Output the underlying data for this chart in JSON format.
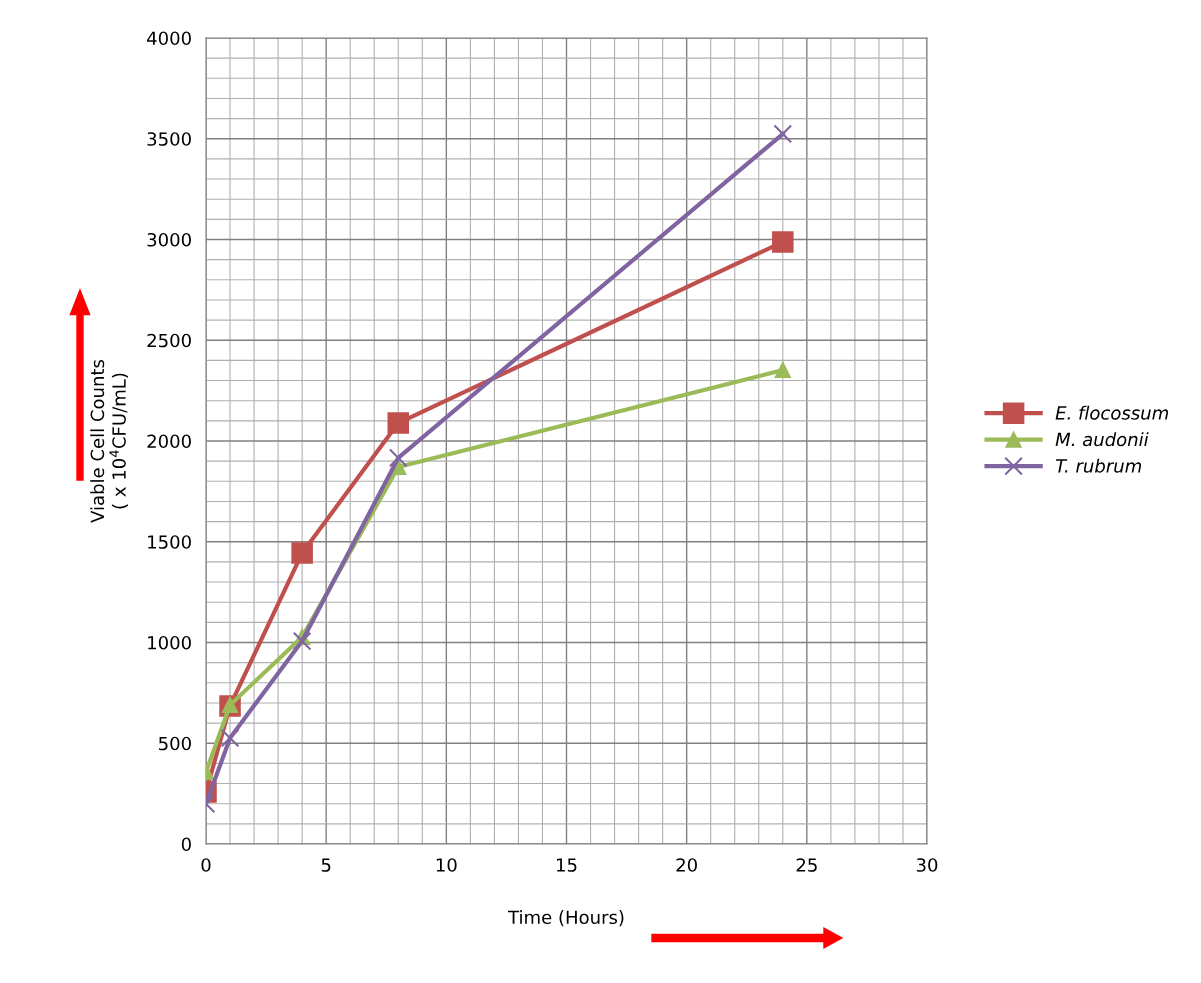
{
  "chart_data": {
    "type": "line",
    "xlabel": "Time (Hours)",
    "ylabel": "Viable Cell Counts\n( x 10$^{4}$CFU/mL)",
    "x": [
      0,
      1,
      4,
      8,
      24
    ],
    "series": [
      {
        "name": "E. flocossum",
        "color": "#c0504d",
        "marker": "square",
        "values": [
          258,
          685,
          1444,
          2089,
          2988
        ]
      },
      {
        "name": "M. audonii",
        "color": "#9bbb59",
        "marker": "triangle",
        "values": [
          357,
          690,
          1027,
          1871,
          2352
        ]
      },
      {
        "name": "T. rubrum",
        "color": "#8064a2",
        "marker": "cross",
        "values": [
          199,
          526,
          1007,
          1916,
          3524
        ]
      }
    ],
    "xlim": [
      0,
      30
    ],
    "xticks": [
      0,
      5,
      10,
      15,
      20,
      25,
      30
    ],
    "ylim": [
      0,
      4000
    ],
    "yticks": [
      0,
      500,
      1000,
      1500,
      2000,
      2500,
      3000,
      3500,
      4000
    ],
    "grid": true,
    "legend": "right",
    "line_style": "solid"
  }
}
